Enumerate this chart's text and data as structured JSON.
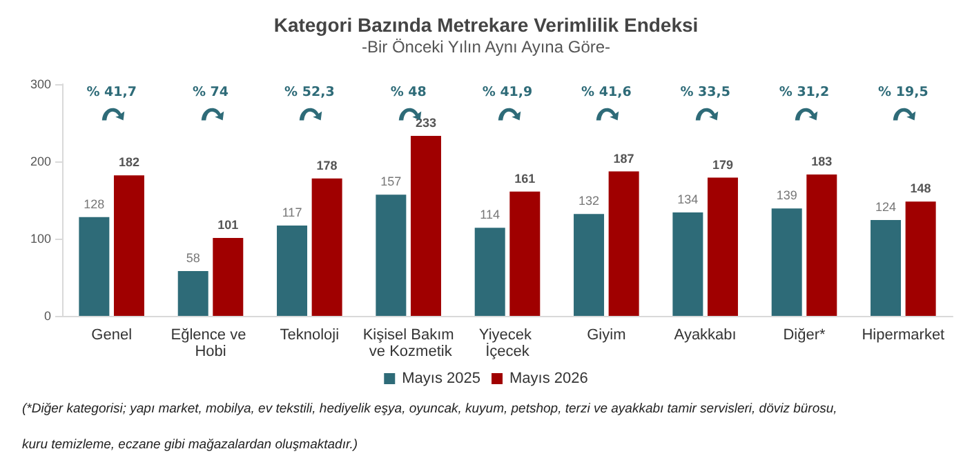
{
  "chart_data": {
    "type": "bar",
    "title": "Kategori Bazında Metrekare Verimlilik Endeksi",
    "subtitle": "-Bir Önceki Yılın Aynı Ayına Göre-",
    "categories": [
      "Genel",
      "Eğlence ve Hobi",
      "Teknoloji",
      "Kişisel Bakım ve Kozmetik",
      "Yiyecek İçecek",
      "Giyim",
      "Ayakkabı",
      "Diğer*",
      "Hipermarket"
    ],
    "series": [
      {
        "name": "Mayıs 2025",
        "color": "#2e6b78",
        "values": [
          128,
          58,
          117,
          157,
          114,
          132,
          134,
          139,
          124
        ]
      },
      {
        "name": "Mayıs 2026",
        "color": "#a00000",
        "values": [
          182,
          101,
          178,
          233,
          161,
          187,
          179,
          183,
          148
        ]
      }
    ],
    "ylim": [
      0,
      300
    ],
    "yticks": [
      0,
      100,
      200,
      300
    ],
    "grid": false,
    "legend": "bottom",
    "data_labels": true,
    "annotations": [
      "% 41,7",
      "% 74",
      "% 52,3",
      "% 48",
      "% 41,9",
      "% 41,6",
      "% 33,5",
      "% 31,2",
      "% 19,5",
      "(*Diğer kategorisi; yapı market, mobilya, ev tekstili, hediyelik eşya, oyuncak, kuyum, petshop, terzi ve ayakkabı tamir servisleri, döviz bürosu, kuru temizleme, eczane gibi mağazalardan oluşmaktadır.)"
    ]
  }
}
